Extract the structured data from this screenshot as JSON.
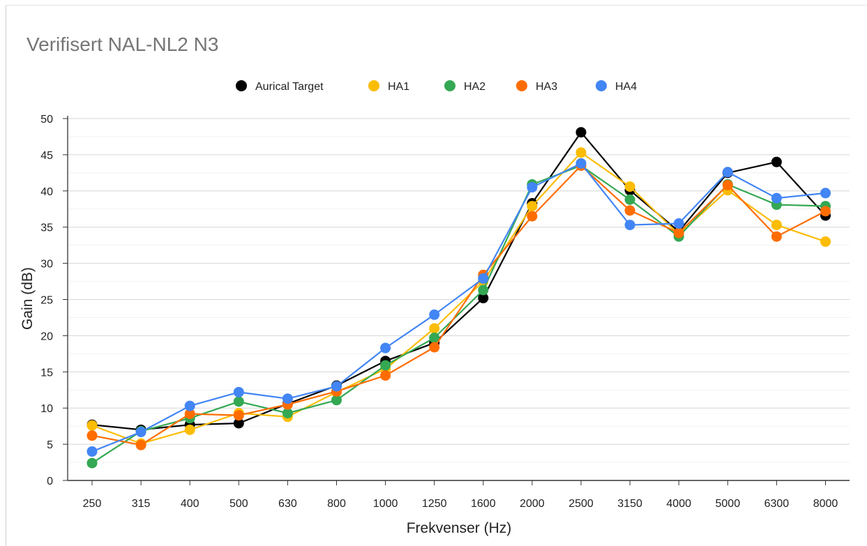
{
  "chart_data": {
    "type": "line",
    "title": "Verifisert NAL-NL2 N3",
    "xlabel": "Frekvenser (Hz)",
    "ylabel": "Gain (dB)",
    "categories": [
      "250",
      "315",
      "400",
      "500",
      "630",
      "800",
      "1000",
      "1250",
      "1600",
      "2000",
      "2500",
      "3150",
      "4000",
      "5000",
      "6300",
      "8000"
    ],
    "ylim": [
      0,
      50
    ],
    "yticks": [
      0,
      5,
      10,
      15,
      20,
      25,
      30,
      35,
      40,
      45,
      50
    ],
    "grid": true,
    "legend_position": "top",
    "series": [
      {
        "name": "Aurical Target",
        "color": "#000000",
        "values": [
          7.7,
          7.0,
          7.7,
          7.9,
          10.6,
          13.1,
          16.5,
          19.0,
          25.2,
          38.3,
          48.1,
          40.1,
          34.4,
          42.5,
          44.0,
          36.6
        ]
      },
      {
        "name": "HA1",
        "color": "#fbbc04",
        "values": [
          7.6,
          5.1,
          7.0,
          9.3,
          8.8,
          12.2,
          15.4,
          21.0,
          27.5,
          37.9,
          45.3,
          40.6,
          34.0,
          40.1,
          35.3,
          33.0
        ]
      },
      {
        "name": "HA2",
        "color": "#34a853",
        "values": [
          2.4,
          6.8,
          8.6,
          10.9,
          9.3,
          11.1,
          15.9,
          19.7,
          26.3,
          40.9,
          43.5,
          38.8,
          33.7,
          40.9,
          38.1,
          37.9
        ]
      },
      {
        "name": "HA3",
        "color": "#ff6d01",
        "values": [
          6.2,
          4.9,
          9.2,
          9.0,
          10.5,
          12.3,
          14.5,
          18.4,
          28.4,
          36.5,
          43.5,
          37.3,
          34.2,
          40.8,
          33.7,
          37.2
        ]
      },
      {
        "name": "HA4",
        "color": "#4285f4",
        "values": [
          4.0,
          6.7,
          10.3,
          12.2,
          11.3,
          13.0,
          18.3,
          22.9,
          27.9,
          40.5,
          43.8,
          35.3,
          35.5,
          42.6,
          39.0,
          39.7
        ]
      }
    ]
  }
}
